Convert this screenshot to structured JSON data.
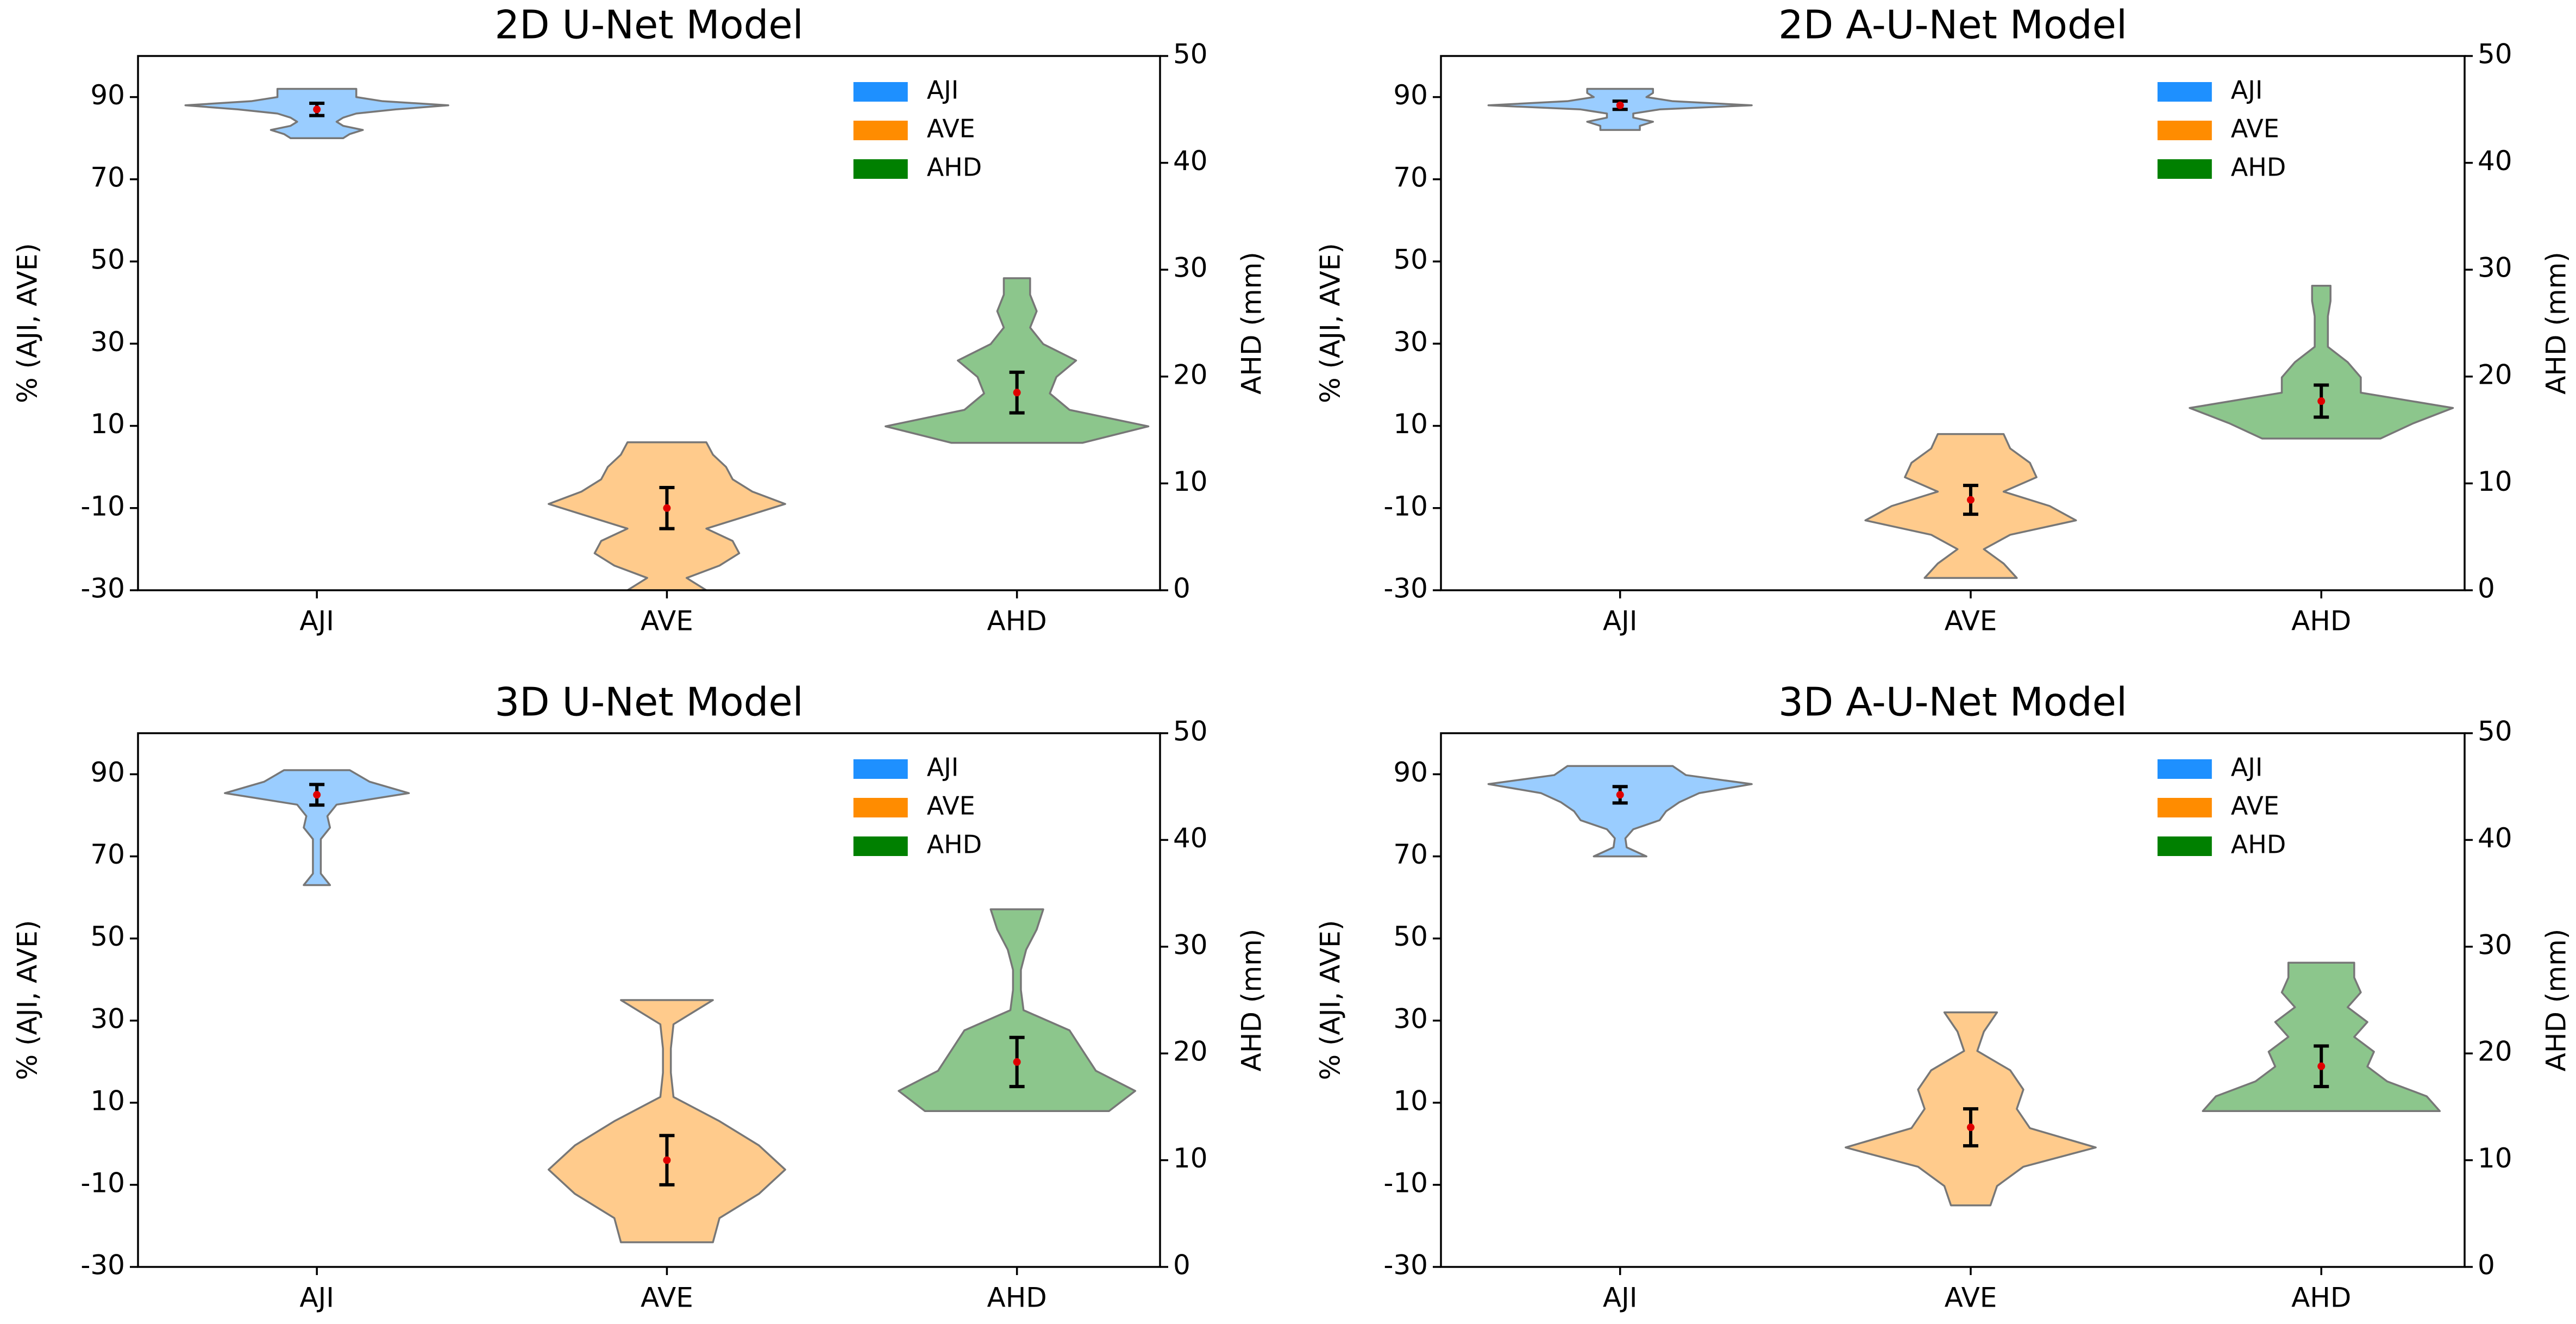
{
  "chart_data": [
    {
      "type": "violin",
      "title": "2D U-Net Model",
      "y_label": "% (AJI, AVE)",
      "y2_label": "AHD (mm)",
      "categories": [
        "AJI",
        "AVE",
        "AHD"
      ],
      "ylim": [
        -30,
        100
      ],
      "yticks": [
        -30,
        -10,
        10,
        30,
        50,
        70,
        90
      ],
      "y2lim": [
        0,
        50
      ],
      "y2ticks": [
        0,
        10,
        20,
        30,
        40,
        50
      ],
      "legend": "upper right",
      "series": [
        {
          "name": "AJI",
          "color": "#1e90ff",
          "min": 80,
          "max": 92,
          "mean": 87,
          "error": 1.5,
          "density": [
            0.2,
            0.25,
            0.35,
            0.2,
            0.15,
            0.2,
            0.3,
            0.6,
            1.0,
            0.5,
            0.3,
            0.3,
            0.3
          ]
        },
        {
          "name": "AVE",
          "color": "#ff8c00",
          "min": -30,
          "max": 6,
          "mean": -10,
          "error": 5,
          "density": [
            0.3,
            0.15,
            0.4,
            0.55,
            0.5,
            0.3,
            0.6,
            0.9,
            0.65,
            0.5,
            0.45,
            0.35,
            0.3
          ]
        },
        {
          "name": "AHD",
          "color": "#008000",
          "axis": "y2",
          "min": 13.8,
          "max": 29.2,
          "mean": 18.5,
          "error": 1.9,
          "density": [
            0.5,
            1.0,
            0.4,
            0.25,
            0.3,
            0.45,
            0.2,
            0.1,
            0.15,
            0.1,
            0.1
          ]
        }
      ]
    },
    {
      "type": "violin",
      "title": "2D A-U-Net Model",
      "y_label": "% (AJI, AVE)",
      "y2_label": "AHD (mm)",
      "categories": [
        "AJI",
        "AVE",
        "AHD"
      ],
      "ylim": [
        -30,
        100
      ],
      "yticks": [
        -30,
        -10,
        10,
        30,
        50,
        70,
        90
      ],
      "y2lim": [
        0,
        50
      ],
      "y2ticks": [
        0,
        10,
        20,
        30,
        40,
        50
      ],
      "legend": "upper right",
      "series": [
        {
          "name": "AJI",
          "color": "#1e90ff",
          "min": 82,
          "max": 92,
          "mean": 88,
          "error": 1,
          "density": [
            0.15,
            0.15,
            0.25,
            0.1,
            0.1,
            0.3,
            1.0,
            0.4,
            0.2,
            0.25,
            0.25
          ]
        },
        {
          "name": "AVE",
          "color": "#ff8c00",
          "min": -27,
          "max": 8,
          "mean": -8,
          "error": 3.5,
          "density": [
            0.35,
            0.25,
            0.1,
            0.3,
            0.8,
            0.6,
            0.25,
            0.5,
            0.45,
            0.3,
            0.25
          ]
        },
        {
          "name": "AHD",
          "color": "#008000",
          "axis": "y2",
          "min": 14.2,
          "max": 28.5,
          "mean": 17.7,
          "error": 1.5,
          "density": [
            0.45,
            0.7,
            1.0,
            0.3,
            0.3,
            0.2,
            0.05,
            0.05,
            0.05,
            0.07,
            0.07
          ]
        }
      ]
    },
    {
      "type": "violin",
      "title": "3D U-Net Model",
      "y_label": "% (AJI, AVE)",
      "y2_label": "AHD (mm)",
      "categories": [
        "AJI",
        "AVE",
        "AHD"
      ],
      "ylim": [
        -30,
        100
      ],
      "yticks": [
        -30,
        -10,
        10,
        30,
        50,
        70,
        90
      ],
      "y2lim": [
        0,
        50
      ],
      "y2ticks": [
        0,
        10,
        20,
        30,
        40,
        50
      ],
      "legend": "upper right",
      "series": [
        {
          "name": "AJI",
          "color": "#1e90ff",
          "min": 63,
          "max": 91,
          "mean": 85,
          "error": 2.5,
          "density": [
            0.1,
            0.03,
            0.03,
            0.03,
            0.03,
            0.1,
            0.08,
            0.15,
            0.7,
            0.4,
            0.25
          ]
        },
        {
          "name": "AVE",
          "color": "#ff8c00",
          "min": -24,
          "max": 35,
          "mean": -4,
          "error": 6,
          "density": [
            0.35,
            0.4,
            0.7,
            0.9,
            0.7,
            0.4,
            0.05,
            0.03,
            0.03,
            0.05,
            0.35
          ]
        },
        {
          "name": "AHD",
          "color": "#008000",
          "axis": "y2",
          "min": 14.6,
          "max": 33.5,
          "mean": 19.2,
          "error": 2.3,
          "density": [
            0.7,
            0.9,
            0.6,
            0.5,
            0.4,
            0.05,
            0.03,
            0.03,
            0.07,
            0.15,
            0.2
          ]
        }
      ]
    },
    {
      "type": "violin",
      "title": "3D A-U-Net Model",
      "y_label": "% (AJI, AVE)",
      "y2_label": "AHD (mm)",
      "categories": [
        "AJI",
        "AVE",
        "AHD"
      ],
      "ylim": [
        -30,
        100
      ],
      "yticks": [
        -30,
        -10,
        10,
        30,
        50,
        70,
        90
      ],
      "y2lim": [
        0,
        50
      ],
      "y2ticks": [
        0,
        10,
        20,
        30,
        40,
        50
      ],
      "legend": "upper right",
      "series": [
        {
          "name": "AJI",
          "color": "#1e90ff",
          "min": 70,
          "max": 92,
          "mean": 85,
          "error": 2,
          "density": [
            0.2,
            0.05,
            0.04,
            0.1,
            0.3,
            0.35,
            0.45,
            0.6,
            1.0,
            0.5,
            0.4
          ]
        },
        {
          "name": "AVE",
          "color": "#ff8c00",
          "min": -15,
          "max": 32,
          "mean": 4,
          "error": 4.5,
          "density": [
            0.15,
            0.2,
            0.4,
            0.95,
            0.45,
            0.35,
            0.4,
            0.3,
            0.05,
            0.1,
            0.2
          ]
        },
        {
          "name": "AHD",
          "color": "#008000",
          "axis": "y2",
          "min": 14.6,
          "max": 28.5,
          "mean": 18.8,
          "error": 1.9,
          "density": [
            0.9,
            0.8,
            0.5,
            0.35,
            0.4,
            0.25,
            0.35,
            0.2,
            0.3,
            0.25,
            0.25
          ]
        }
      ]
    }
  ]
}
